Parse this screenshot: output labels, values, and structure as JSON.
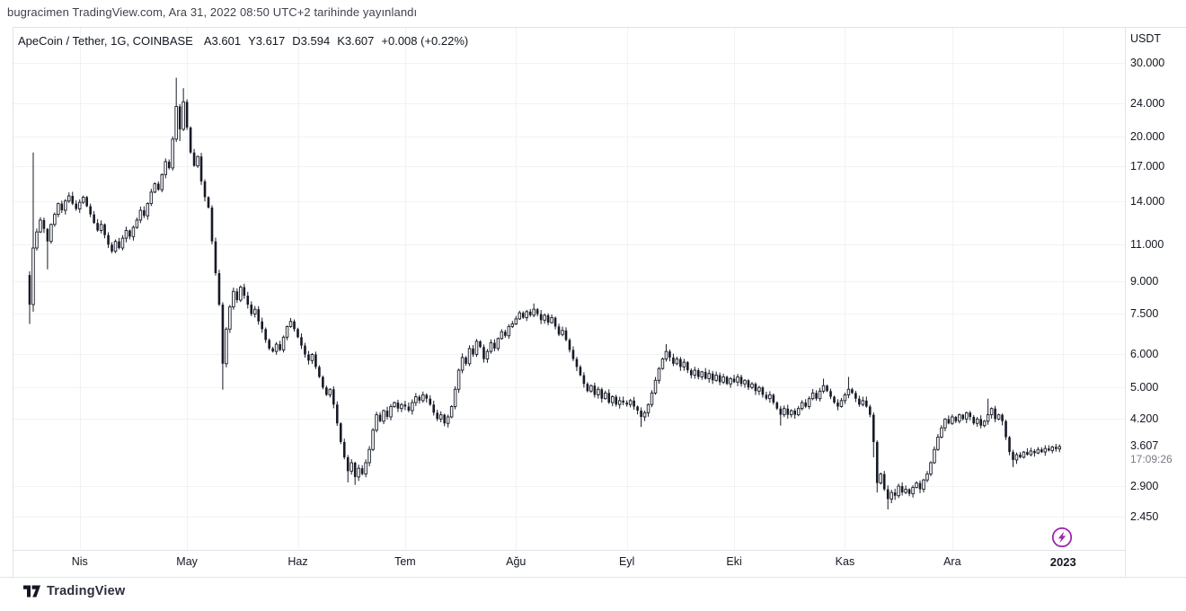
{
  "attribution": "bugracimen TradingView.com, Ara 31, 2022 08:50 UTC+2 tarihinde yayınlandı",
  "legend": {
    "symbol": "ApeCoin / Tether, 1G, COINBASE",
    "ohlc": [
      {
        "key": "A",
        "value": "3.601"
      },
      {
        "key": "Y",
        "value": "3.617"
      },
      {
        "key": "D",
        "value": "3.594"
      },
      {
        "key": "K",
        "value": "3.607"
      }
    ],
    "change": "+0.008 (+0.22%)"
  },
  "price_axis": {
    "currency": "USDT",
    "ticks": [
      {
        "label": "30.000",
        "value": 30
      },
      {
        "label": "24.000",
        "value": 24
      },
      {
        "label": "20.000",
        "value": 20
      },
      {
        "label": "17.000",
        "value": 17
      },
      {
        "label": "14.000",
        "value": 14
      },
      {
        "label": "11.000",
        "value": 11
      },
      {
        "label": "9.000",
        "value": 9
      },
      {
        "label": "7.500",
        "value": 7.5
      },
      {
        "label": "6.000",
        "value": 6
      },
      {
        "label": "5.000",
        "value": 5
      },
      {
        "label": "4.200",
        "value": 4.2
      },
      {
        "label": "2.900",
        "value": 2.9
      },
      {
        "label": "2.450",
        "value": 2.45
      }
    ],
    "last_price": {
      "label": "3.607",
      "value": 3.607,
      "countdown": "17:09:26"
    }
  },
  "time_axis": {
    "ticks": [
      {
        "label": "Nis",
        "day": 14
      },
      {
        "label": "May",
        "day": 44
      },
      {
        "label": "Haz",
        "day": 75
      },
      {
        "label": "Tem",
        "day": 105
      },
      {
        "label": "Ağu",
        "day": 136
      },
      {
        "label": "Eyl",
        "day": 167
      },
      {
        "label": "Eki",
        "day": 197
      },
      {
        "label": "Kas",
        "day": 228
      },
      {
        "label": "Ara",
        "day": 258
      },
      {
        "label": "2023",
        "day": 289,
        "bold": true
      }
    ]
  },
  "watermark": {
    "brand": "TradingView"
  },
  "colors": {
    "candle": "#161a25",
    "grid": "#f0f2f6",
    "border": "#e0e3eb",
    "text_primary": "#131722",
    "text_secondary": "#787b86",
    "flash_purple": "#9c27b0",
    "background": "#ffffff"
  },
  "chart_data": {
    "type": "candlestick",
    "title": "ApeCoin / Tether, 1G, COINBASE",
    "symbol": "APE/USDT",
    "interval": "1G",
    "exchange": "COINBASE",
    "currency": "USDT",
    "scale": "log",
    "start_date": "2022-03-18",
    "end_date": "2022-12-31",
    "last_ohlc": {
      "open": 3.601,
      "high": 3.617,
      "low": 3.594,
      "close": 3.607,
      "change": 0.008,
      "change_pct": 0.22
    },
    "ylim": [
      2.3,
      33
    ],
    "price_gridlines": [
      30,
      24,
      20,
      17,
      14,
      11,
      9,
      7.5,
      6,
      5,
      4.2,
      2.9,
      2.45
    ],
    "first_open": 9.3,
    "closes": [
      7.9,
      10.8,
      11.8,
      12.6,
      12.0,
      11.2,
      12.3,
      13.0,
      13.8,
      13.3,
      14.0,
      14.4,
      13.8,
      13.4,
      13.9,
      14.3,
      13.6,
      13.0,
      12.4,
      11.9,
      12.3,
      11.6,
      11.0,
      10.6,
      11.2,
      10.8,
      11.4,
      11.9,
      11.5,
      12.1,
      12.6,
      13.3,
      12.9,
      13.8,
      14.7,
      15.4,
      14.9,
      16.2,
      17.4,
      16.8,
      19.7,
      23.6,
      20.8,
      24.2,
      21.0,
      18.3,
      17.0,
      17.9,
      15.6,
      14.3,
      13.5,
      11.2,
      9.4,
      7.9,
      5.7,
      6.9,
      7.8,
      8.5,
      8.1,
      8.7,
      8.3,
      7.9,
      7.5,
      7.7,
      7.2,
      6.9,
      6.5,
      6.2,
      6.1,
      6.35,
      6.15,
      6.6,
      7.0,
      7.2,
      6.9,
      6.6,
      6.3,
      6.0,
      5.8,
      6.0,
      5.6,
      5.3,
      5.0,
      4.8,
      4.95,
      4.55,
      4.1,
      3.7,
      3.4,
      3.15,
      3.3,
      3.05,
      3.2,
      3.1,
      3.3,
      3.55,
      3.95,
      4.3,
      4.15,
      4.4,
      4.25,
      4.5,
      4.6,
      4.45,
      4.55,
      4.5,
      4.4,
      4.6,
      4.75,
      4.65,
      4.8,
      4.7,
      4.55,
      4.35,
      4.2,
      4.3,
      4.1,
      4.25,
      4.5,
      4.95,
      5.5,
      5.9,
      5.7,
      6.2,
      6.0,
      6.45,
      6.25,
      5.85,
      6.1,
      6.4,
      6.2,
      6.55,
      6.8,
      6.65,
      7.0,
      7.1,
      7.3,
      7.55,
      7.35,
      7.6,
      7.45,
      7.7,
      7.5,
      7.25,
      7.45,
      7.15,
      7.35,
      7.0,
      6.7,
      6.85,
      6.5,
      6.15,
      5.85,
      5.6,
      5.35,
      5.1,
      4.9,
      5.05,
      4.8,
      4.95,
      4.7,
      4.85,
      4.6,
      4.75,
      4.55,
      4.65,
      4.6,
      4.55,
      4.65,
      4.5,
      4.4,
      4.25,
      4.35,
      4.55,
      4.85,
      5.2,
      5.55,
      5.85,
      6.1,
      5.9,
      5.7,
      5.85,
      5.6,
      5.75,
      5.5,
      5.35,
      5.5,
      5.3,
      5.45,
      5.25,
      5.4,
      5.2,
      5.35,
      5.15,
      5.3,
      5.1,
      5.25,
      5.15,
      5.3,
      5.1,
      5.2,
      5.0,
      5.1,
      4.9,
      5.0,
      4.8,
      4.7,
      4.8,
      4.6,
      4.45,
      4.3,
      4.45,
      4.3,
      4.4,
      4.3,
      4.45,
      4.6,
      4.5,
      4.7,
      4.85,
      4.7,
      4.9,
      5.05,
      4.9,
      4.75,
      4.6,
      4.5,
      4.65,
      4.8,
      4.95,
      4.85,
      4.7,
      4.55,
      4.65,
      4.5,
      4.3,
      3.7,
      2.95,
      3.1,
      2.85,
      2.7,
      2.8,
      2.75,
      2.9,
      2.8,
      2.85,
      2.78,
      2.88,
      2.95,
      2.85,
      3.0,
      3.1,
      3.3,
      3.55,
      3.8,
      4.0,
      4.2,
      4.1,
      4.25,
      4.15,
      4.3,
      4.2,
      4.35,
      4.25,
      4.1,
      4.2,
      4.05,
      4.15,
      4.3,
      4.45,
      4.2,
      4.3,
      4.15,
      3.8,
      3.5,
      3.35,
      3.45,
      3.4,
      3.5,
      3.45,
      3.52,
      3.48,
      3.55,
      3.5,
      3.57,
      3.53,
      3.6,
      3.56,
      3.607
    ],
    "wick_overrides": {
      "0": {
        "h": 9.5,
        "l": 7.1
      },
      "1": {
        "h": 18.3,
        "l": 7.6
      },
      "5": {
        "l": 9.6
      },
      "41": {
        "h": 27.65
      },
      "42": {
        "l": 19.5
      },
      "43": {
        "h": 26.1
      },
      "54": {
        "l": 4.94
      },
      "89": {
        "l": 2.96
      },
      "91": {
        "l": 2.92
      },
      "141": {
        "h": 7.95
      },
      "171": {
        "l": 4.02
      },
      "178": {
        "h": 6.35
      },
      "210": {
        "l": 4.05
      },
      "222": {
        "h": 5.25
      },
      "229": {
        "h": 5.3
      },
      "236": {
        "l": 3.4
      },
      "237": {
        "l": 2.8
      },
      "240": {
        "l": 2.55
      },
      "268": {
        "h": 4.7
      },
      "275": {
        "l": 3.22
      }
    }
  }
}
